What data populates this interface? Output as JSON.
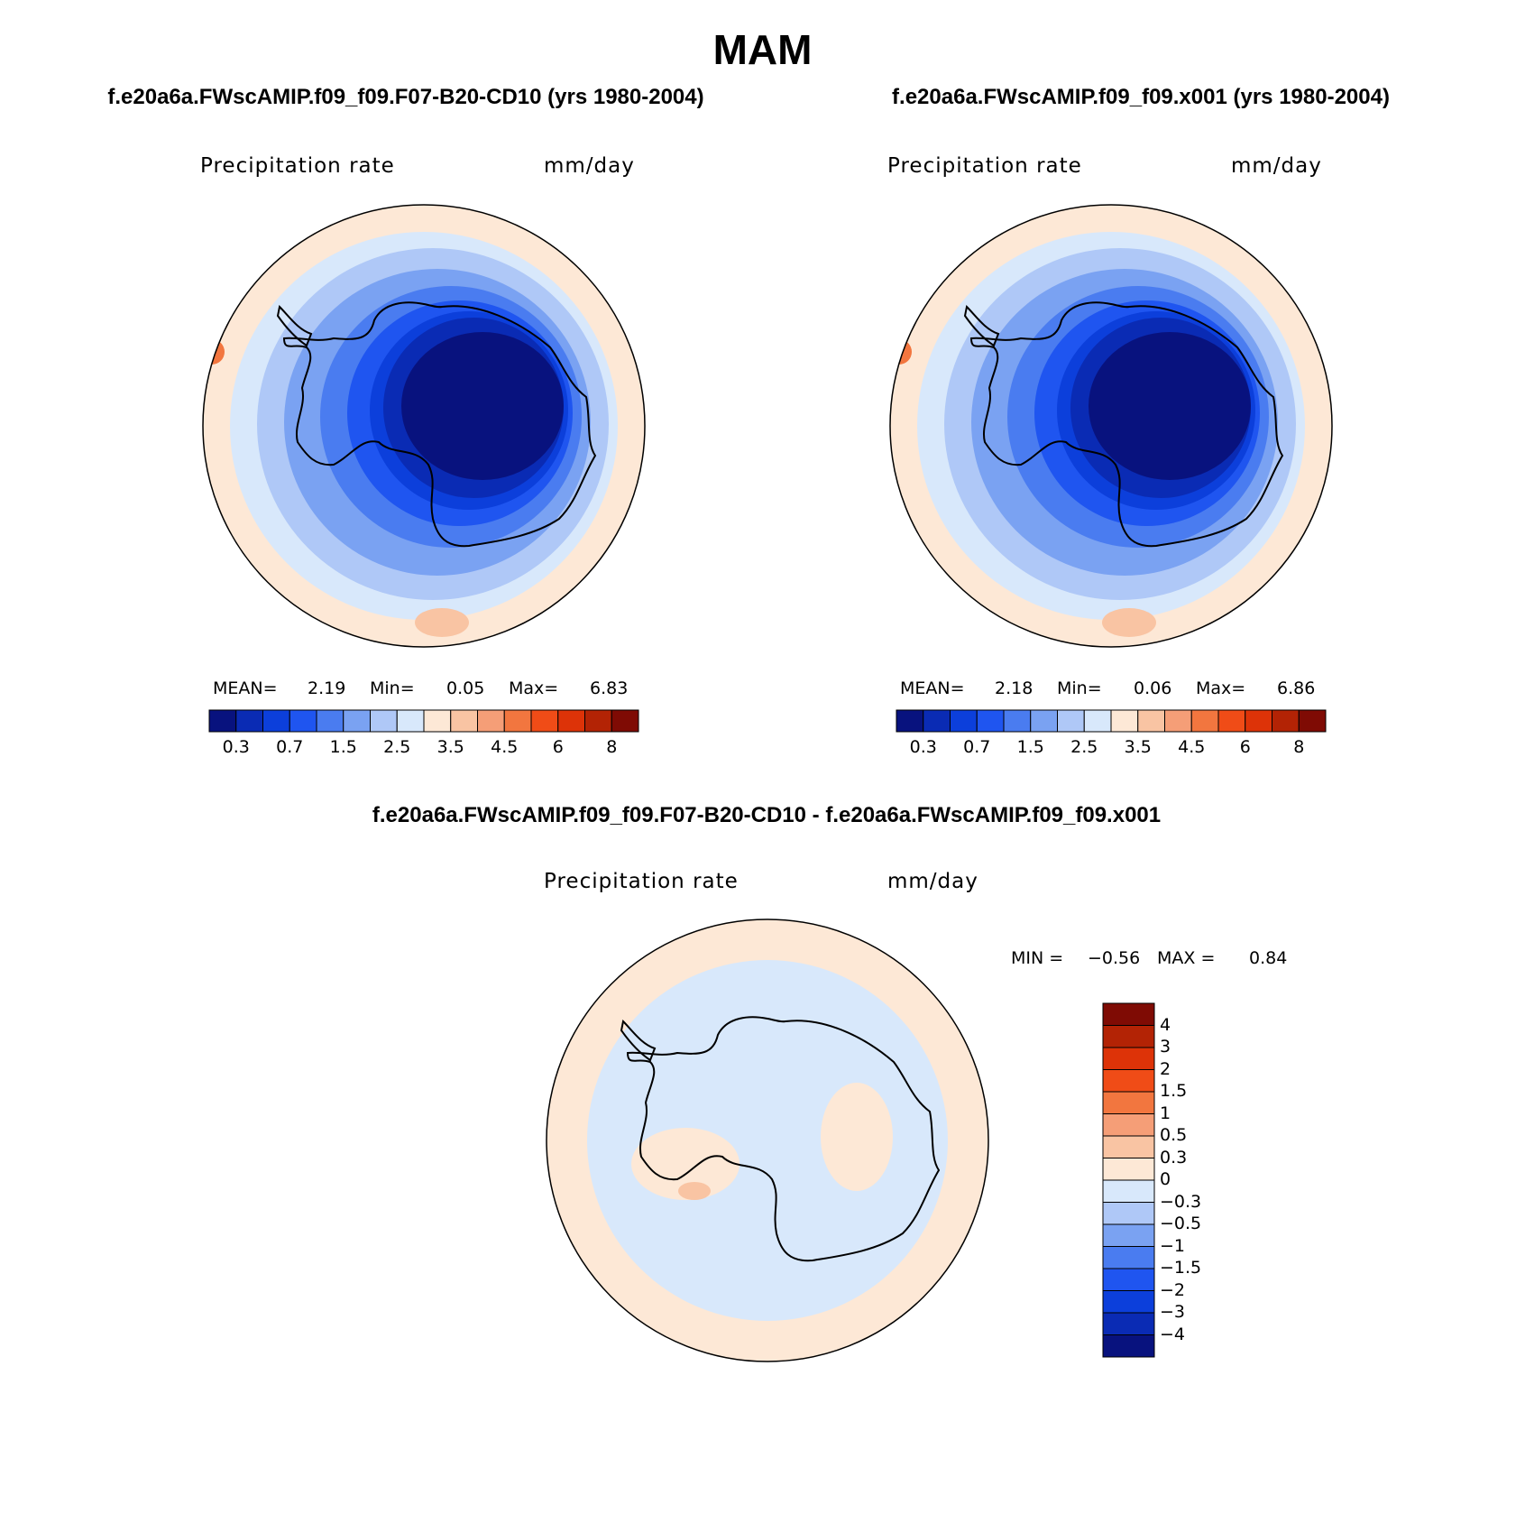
{
  "page_title": "MAM",
  "panels": [
    {
      "title": "f.e20a6a.FWscAMIP.f09_f09.F07-B20-CD10 (yrs 1980-2004)",
      "variable": "Precipitation rate",
      "units": "mm/day",
      "stats": {
        "mean_label": "MEAN=",
        "mean": "2.19",
        "min_label": "Min=",
        "min": "0.05",
        "max_label": "Max=",
        "max": "6.83"
      }
    },
    {
      "title": "f.e20a6a.FWscAMIP.f09_f09.x001 (yrs 1980-2004)",
      "variable": "Precipitation rate",
      "units": "mm/day",
      "stats": {
        "mean_label": "MEAN=",
        "mean": "2.18",
        "min_label": "Min=",
        "min": "0.06",
        "max_label": "Max=",
        "max": "6.86"
      }
    },
    {
      "title": "f.e20a6a.FWscAMIP.f09_f09.F07-B20-CD10 - f.e20a6a.FWscAMIP.f09_f09.x001",
      "variable": "Precipitation rate",
      "units": "mm/day",
      "stats": {
        "min_label": "MIN =",
        "min": "−0.56",
        "max_label": "MAX =",
        "max": "0.84"
      }
    }
  ],
  "colorbar_abs": {
    "colors": [
      "#08127e",
      "#0a2bb4",
      "#0c3fdb",
      "#1f55f0",
      "#4a7cf0",
      "#7aa2f2",
      "#afc8f7",
      "#d8e8fb",
      "#fde8d6",
      "#f9c4a3",
      "#f59e77",
      "#f2763f",
      "#f04c17",
      "#dd3308",
      "#b32305",
      "#7f0b04"
    ],
    "labels": [
      "0.3",
      "0.7",
      "1.5",
      "2.5",
      "3.5",
      "4.5",
      "6",
      "8"
    ]
  },
  "colorbar_diff": {
    "colors": [
      "#08127e",
      "#0a2bb4",
      "#0c3fdb",
      "#1f55f0",
      "#4a7cf0",
      "#7aa2f2",
      "#afc8f7",
      "#d8e8fb",
      "#fde8d6",
      "#f9c4a3",
      "#f59e77",
      "#f2763f",
      "#f04c17",
      "#dd3308",
      "#b32305",
      "#7f0b04"
    ],
    "labels": [
      "4",
      "3",
      "2",
      "1.5",
      "1",
      "0.5",
      "0.3",
      "0",
      "−0.3",
      "−0.5",
      "−1",
      "−1.5",
      "−2",
      "−3",
      "−4"
    ]
  }
}
